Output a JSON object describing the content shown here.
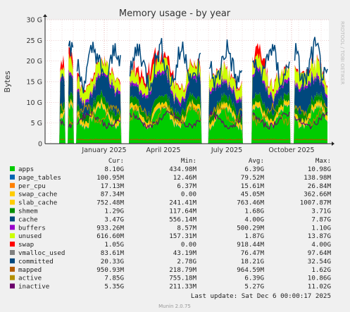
{
  "chart_data": {
    "type": "area",
    "title": "Memory usage - by year",
    "ylabel": "Bytes",
    "ylim": [
      0,
      30
    ],
    "y_ticks": [
      "0",
      "5 G",
      "10 G",
      "15 G",
      "20 G",
      "25 G",
      "30 G"
    ],
    "x_ticks": [
      "January 2025",
      "April 2025",
      "July 2025",
      "October 2025"
    ],
    "side_label": "RRDTOOL / TOBI OETIKER",
    "legend_header": {
      "cur": "Cur:",
      "min": "Min:",
      "avg": "Avg:",
      "max": "Max:"
    },
    "series": [
      {
        "name": "apps",
        "color": "#00cc00",
        "cur": "8.10G",
        "min": "434.98M",
        "avg": "6.39G",
        "max": "10.98G"
      },
      {
        "name": "page_tables",
        "color": "#0066b3",
        "cur": "100.95M",
        "min": "12.46M",
        "avg": "79.52M",
        "max": "138.98M"
      },
      {
        "name": "per_cpu",
        "color": "#ff8000",
        "cur": "17.13M",
        "min": "6.37M",
        "avg": "15.61M",
        "max": "26.84M"
      },
      {
        "name": "swap_cache",
        "color": "#ffcc00",
        "cur": "87.34M",
        "min": "0.00",
        "avg": "45.05M",
        "max": "362.66M"
      },
      {
        "name": "slab_cache",
        "color": "#ffcc00",
        "cur": "752.48M",
        "min": "241.41M",
        "avg": "763.46M",
        "max": "1007.87M"
      },
      {
        "name": "shmem",
        "color": "#008f00",
        "cur": "1.29G",
        "min": "117.64M",
        "avg": "1.68G",
        "max": "3.71G"
      },
      {
        "name": "cache",
        "color": "#00487d",
        "cur": "3.47G",
        "min": "556.14M",
        "avg": "4.00G",
        "max": "7.87G"
      },
      {
        "name": "buffers",
        "color": "#9900cc",
        "cur": "933.26M",
        "min": "8.57M",
        "avg": "500.29M",
        "max": "1.10G"
      },
      {
        "name": "unused",
        "color": "#ccff00",
        "cur": "616.60M",
        "min": "157.31M",
        "avg": "1.87G",
        "max": "13.87G"
      },
      {
        "name": "swap",
        "color": "#ff0000",
        "cur": "1.05G",
        "min": "0.00",
        "avg": "918.44M",
        "max": "4.00G"
      },
      {
        "name": "vmalloc_used",
        "color": "#808080",
        "cur": "83.61M",
        "min": "43.19M",
        "avg": "76.47M",
        "max": "97.64M"
      },
      {
        "name": "committed",
        "color": "#00487d",
        "cur": "20.33G",
        "min": "2.78G",
        "avg": "18.21G",
        "max": "32.54G"
      },
      {
        "name": "mapped",
        "color": "#b35a00",
        "cur": "950.93M",
        "min": "218.79M",
        "avg": "964.59M",
        "max": "1.62G"
      },
      {
        "name": "active",
        "color": "#b38f00",
        "cur": "7.85G",
        "min": "755.18M",
        "avg": "6.39G",
        "max": "10.86G"
      },
      {
        "name": "inactive",
        "color": "#6b006b",
        "cur": "5.35G",
        "min": "211.33M",
        "avg": "5.27G",
        "max": "11.02G"
      }
    ],
    "last_update": "Last update: Sat Dec  6 00:00:17 2025",
    "footer": "Munin 2.0.75"
  }
}
